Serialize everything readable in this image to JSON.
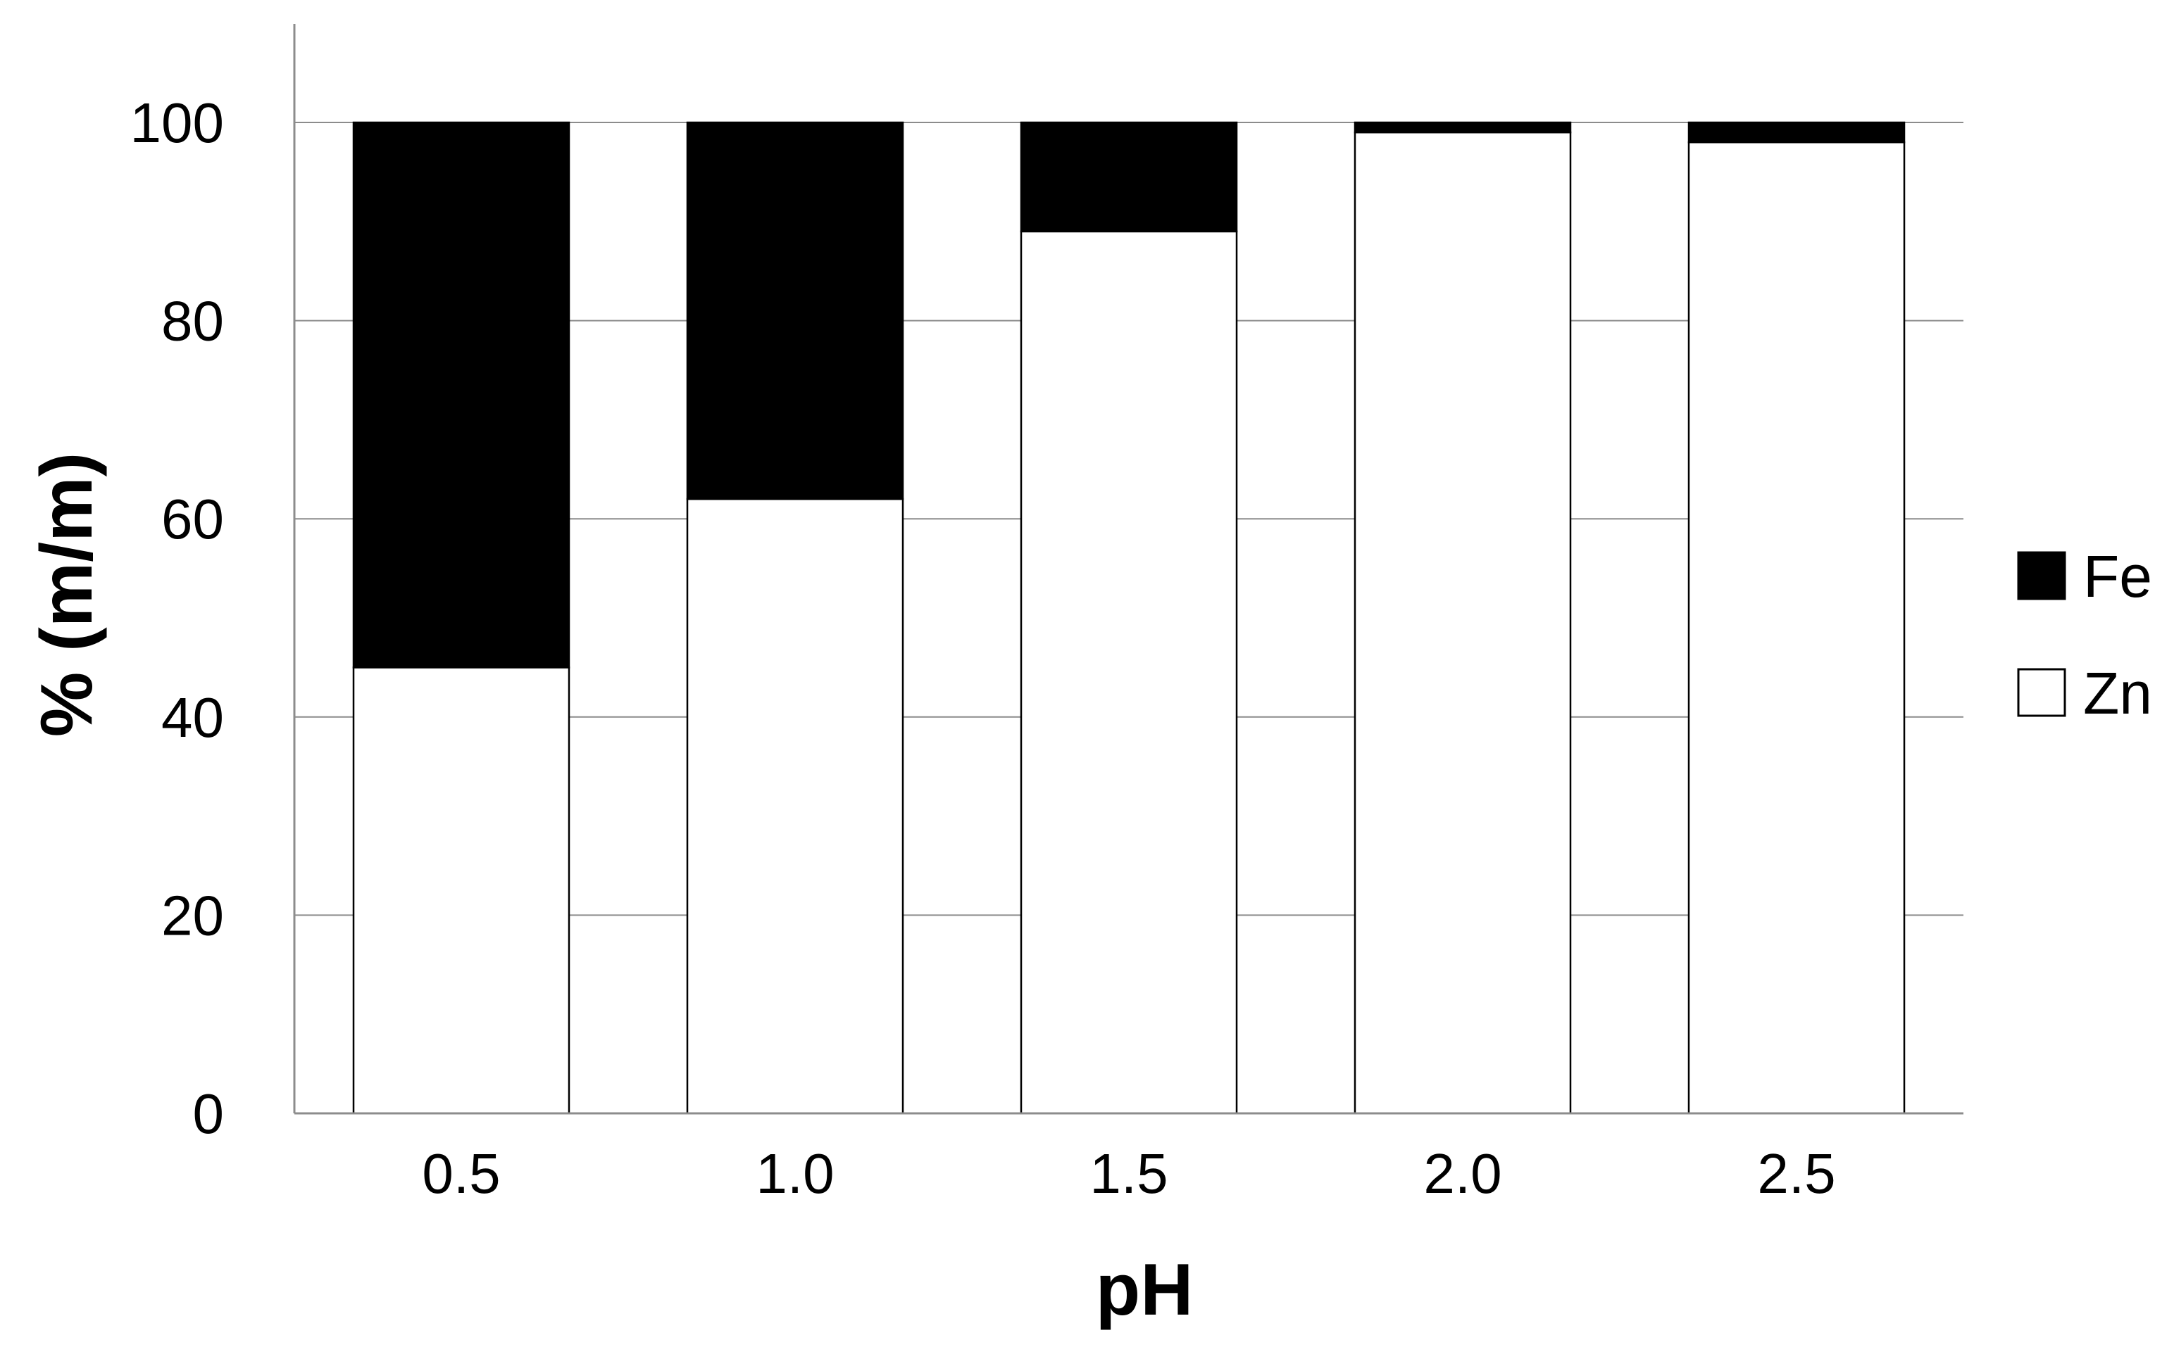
{
  "chart_data": {
    "type": "bar",
    "stacked": true,
    "title": "",
    "xlabel": "pH",
    "ylabel": "% (m/m)",
    "categories": [
      "0.5",
      "1.0",
      "1.5",
      "2.0",
      "2.5"
    ],
    "series": [
      {
        "name": "Zn",
        "values": [
          45,
          62,
          89,
          99,
          98
        ],
        "color": "#ffffff"
      },
      {
        "name": "Fe",
        "values": [
          55,
          38,
          11,
          1,
          2
        ],
        "color": "#000000"
      }
    ],
    "ylim": [
      0,
      100
    ],
    "yticks": [
      "0",
      "20",
      "40",
      "60",
      "80",
      "100"
    ],
    "grid": true,
    "legend": {
      "position": "right",
      "order": [
        "Fe",
        "Zn"
      ]
    }
  }
}
